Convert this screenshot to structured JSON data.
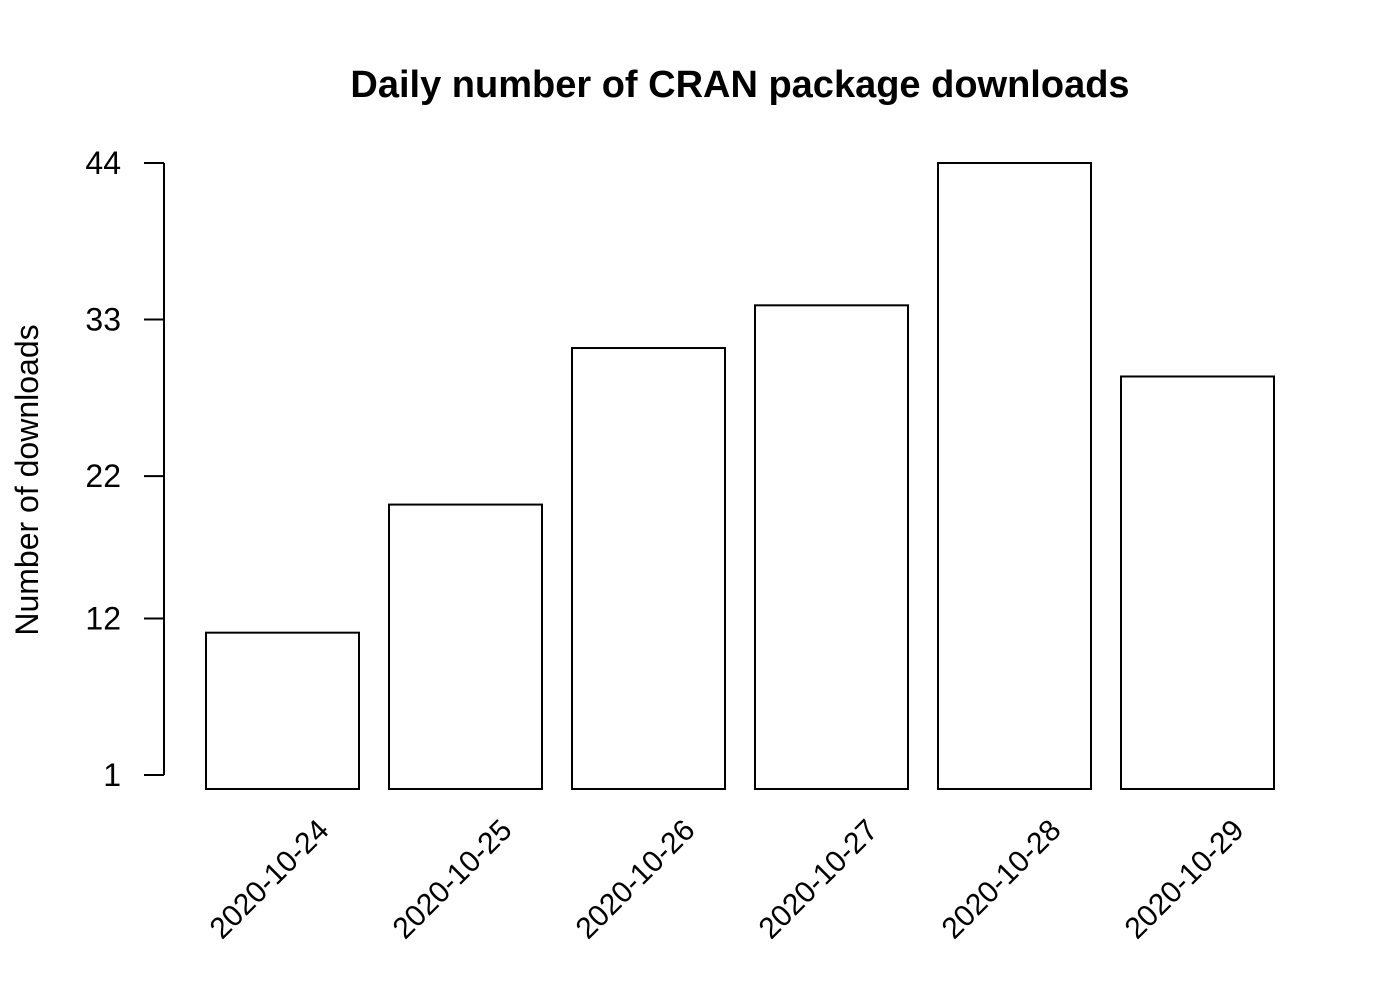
{
  "chart_data": {
    "type": "bar",
    "title": "Daily number of CRAN package downloads",
    "xlabel": "",
    "ylabel": "Number of downloads",
    "categories": [
      "2020-10-24",
      "2020-10-25",
      "2020-10-26",
      "2020-10-27",
      "2020-10-28",
      "2020-10-29"
    ],
    "values": [
      11,
      20,
      31,
      34,
      44,
      29
    ],
    "yticks": [
      1,
      12,
      22,
      33,
      44
    ],
    "ylim": [
      1,
      44
    ],
    "bar_fill": "#ffffff",
    "bar_stroke": "#000000",
    "grid": false,
    "legend": "none"
  }
}
